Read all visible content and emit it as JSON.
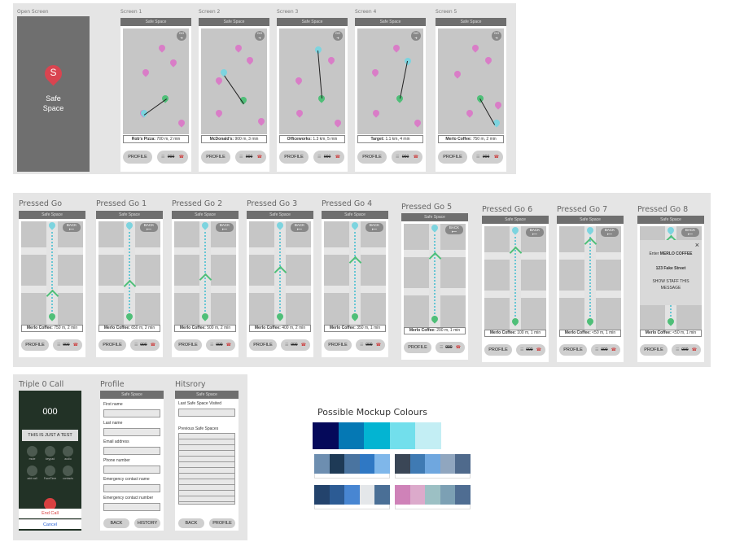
{
  "app": {
    "header": "Safe Space"
  },
  "open_screen": {
    "caption": "Open Screen",
    "logo_letter": "S",
    "name_line1": "Safe",
    "name_line2": "Space"
  },
  "screens": [
    {
      "caption": "Screen 1",
      "info_place": "Rob's Pizza:",
      "info_detail": "700 m, 2 min"
    },
    {
      "caption": "Screen 2",
      "info_place": "McDonald's:",
      "info_detail": "900 m, 3 min"
    },
    {
      "caption": "Screen 3",
      "info_place": "Officeworks:",
      "info_detail": "1.3 km, 5 min"
    },
    {
      "caption": "Screen 4",
      "info_place": "Target:",
      "info_detail": "1.1 km, 4 min"
    },
    {
      "caption": "Screen 5",
      "info_place": "Merlo Coffee:",
      "info_detail": "750 m, 2 min"
    }
  ],
  "pressed": [
    {
      "caption": "Pressed Go",
      "info_place": "Merlo Coffee:",
      "info_detail": "750 m, 2 min"
    },
    {
      "caption": "Pressed Go 1",
      "info_place": "Merlo Coffee:",
      "info_detail": "650 m, 2 min"
    },
    {
      "caption": "Pressed Go 2",
      "info_place": "Merlo Coffee:",
      "info_detail": "500 m, 2 min"
    },
    {
      "caption": "Pressed Go 3",
      "info_place": "Merlo Coffee:",
      "info_detail": "400 m, 2 min"
    },
    {
      "caption": "Pressed Go 4",
      "info_place": "Merlo Coffee:",
      "info_detail": "350 m, 1 min"
    },
    {
      "caption": "Pressed Go 5",
      "info_place": "Merlo Coffee:",
      "info_detail": "200 m, 1 min"
    },
    {
      "caption": "Pressed Go 6",
      "info_place": "Merlo Coffee:",
      "info_detail": "100 m, 1 min"
    },
    {
      "caption": "Pressed Go 7",
      "info_place": "Merlo Coffee:",
      "info_detail": "<50 m, 1 min"
    },
    {
      "caption": "Pressed Go 8",
      "info_place": "Merlo Coffee:",
      "info_detail": "<50 m, 1 min"
    }
  ],
  "buttons": {
    "profile": "PROFILE",
    "emergency": "000",
    "go": "GO",
    "back": "BACK",
    "history": "HISTORY"
  },
  "arrival_popup": {
    "enter": "Enter",
    "place": "MERLO COFFEE",
    "address": "123 Fake Street",
    "instruction_line1": "SHOW STAFF THIS",
    "instruction_line2": "MESSAGE",
    "close": "×"
  },
  "triple0": {
    "caption": "Triple 0 Call",
    "number": "000",
    "test_text": "THIS IS JUST A TEST",
    "end_call": "End Call",
    "cancel": "Cancel",
    "key_labels": [
      "mute",
      "keypad",
      "audio",
      "add call",
      "FaceTime",
      "contacts"
    ]
  },
  "profile": {
    "caption": "Profile",
    "fields": [
      "First name",
      "Last name",
      "Email address",
      "Phone number",
      "Emergency contact name",
      "Emergency contact number"
    ],
    "back": "BACK",
    "history": "HISTORY"
  },
  "history": {
    "caption": "Hitsrory",
    "last_label": "Last Safe Space Visited",
    "previous_label": "Previous Safe Spaces",
    "back": "BACK",
    "profile": "PROFILE"
  },
  "palette": {
    "title": "Possible Mockup Colours",
    "main": [
      "#05095a",
      "#0578b4",
      "#03b4d2",
      "#72dfec",
      "#c3eef4"
    ],
    "swatches": [
      [
        "#6d8eb0",
        "#1e3a56",
        "#4a74a0",
        "#2f78c4",
        "#7fb7ea"
      ],
      [
        "#3a4656",
        "#3f7ab3",
        "#6fa7df",
        "#90a6bf",
        "#4f6a8c"
      ],
      [
        "#23436c",
        "#2c5b94",
        "#4886d2",
        "#e4e7ea",
        "#4a6f96"
      ],
      [
        "#cf82b8",
        "#dcaacb",
        "#9cc0c4",
        "#7ca0b4",
        "#4f6d92"
      ]
    ]
  }
}
